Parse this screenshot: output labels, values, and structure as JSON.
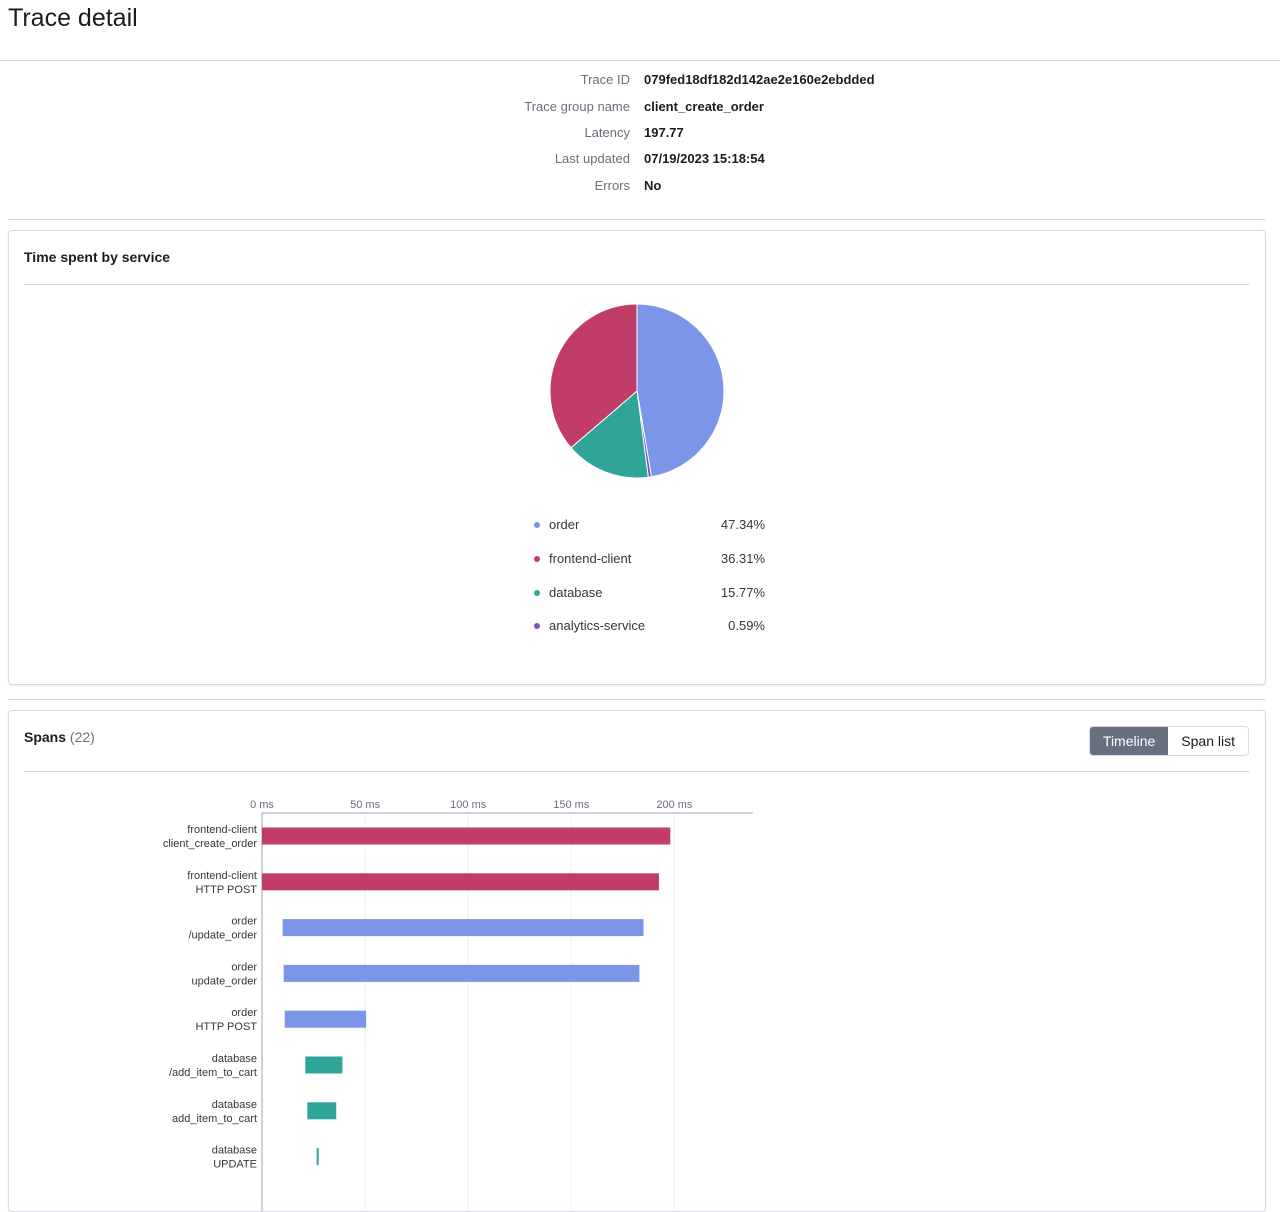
{
  "page": {
    "title": "Trace detail"
  },
  "trace": {
    "rows": [
      {
        "label": "Trace ID",
        "value": "079fed18df182d142ae2e160e2ebdded"
      },
      {
        "label": "Trace group name",
        "value": "client_create_order"
      },
      {
        "label": "Latency",
        "value": "197.77"
      },
      {
        "label": "Last updated",
        "value": "07/19/2023 15:18:54"
      },
      {
        "label": "Errors",
        "value": "No"
      }
    ]
  },
  "service_panel": {
    "title": "Time spent by service",
    "legend": [
      {
        "name": "order",
        "pct": "47.34%"
      },
      {
        "name": "frontend-client",
        "pct": "36.31%"
      },
      {
        "name": "database",
        "pct": "15.77%"
      },
      {
        "name": "analytics-service",
        "pct": "0.59%"
      }
    ]
  },
  "spans_panel": {
    "title": "Spans",
    "count": "(22)",
    "view_toggle": {
      "timeline": "Timeline",
      "span_list": "Span list",
      "selected": "Timeline"
    }
  },
  "colors": {
    "order": "#7b95e8",
    "frontend-client": "#c13c66",
    "database": "#2ea597",
    "analytics-service": "#7c4fc4"
  },
  "chart_data": [
    {
      "type": "pie",
      "title": "Time spent by service",
      "labels": [
        "order",
        "frontend-client",
        "database",
        "analytics-service"
      ],
      "values": [
        47.34,
        36.31,
        15.77,
        0.59
      ],
      "order_in_pie": [
        "order",
        "analytics-service",
        "database",
        "frontend-client"
      ]
    },
    {
      "type": "bar",
      "orientation": "horizontal",
      "x_unit": "ms",
      "xlim": [
        0,
        238
      ],
      "x_ticks": [
        0,
        50,
        100,
        150,
        200
      ],
      "x_tick_labels": [
        "0 ms",
        "50 ms",
        "100 ms",
        "150 ms",
        "200 ms"
      ],
      "grid": true,
      "spans": [
        {
          "service": "frontend-client",
          "name": "client_create_order",
          "start": 0,
          "end": 198
        },
        {
          "service": "frontend-client",
          "name": "HTTP POST",
          "start": 0,
          "end": 192.5
        },
        {
          "service": "order",
          "name": "/update_order",
          "start": 10,
          "end": 185
        },
        {
          "service": "order",
          "name": "update_order",
          "start": 10.5,
          "end": 183
        },
        {
          "service": "order",
          "name": "HTTP POST",
          "start": 11,
          "end": 50.5
        },
        {
          "service": "database",
          "name": "/add_item_to_cart",
          "start": 21,
          "end": 39
        },
        {
          "service": "database",
          "name": "add_item_to_cart",
          "start": 22,
          "end": 36
        },
        {
          "service": "database",
          "name": "UPDATE",
          "start": 26.5,
          "end": 27.5
        }
      ]
    }
  ]
}
